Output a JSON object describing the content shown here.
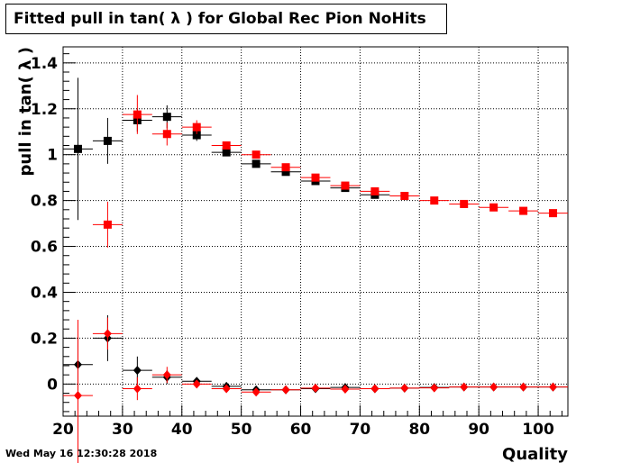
{
  "title": "Fitted pull in tan( λ ) for Global Rec Pion NoHits",
  "timestamp": "Wed May 16 12:30:28 2018",
  "chart_data": {
    "type": "scatter",
    "title": "Fitted pull in tan( λ ) for Global Rec Pion NoHits",
    "xlabel": "Quality",
    "ylabel": "pull in tan( λ )",
    "xlim": [
      20,
      105
    ],
    "ylim": [
      -0.14,
      1.47
    ],
    "xticks": [
      "20",
      "30",
      "40",
      "50",
      "60",
      "70",
      "80",
      "90",
      "100"
    ],
    "yticks": [
      "0",
      "0.2",
      "0.4",
      "0.6",
      "0.8",
      "1",
      "1.2",
      "1.4"
    ],
    "grid": true,
    "series": [
      {
        "marker": "square",
        "color": "#000000",
        "points": [
          {
            "x": 22.5,
            "y": 1.025,
            "xerr": 2.5,
            "yerr": 0.31
          },
          {
            "x": 27.5,
            "y": 1.06,
            "xerr": 2.5,
            "yerr": 0.1
          },
          {
            "x": 32.5,
            "y": 1.15,
            "xerr": 2.5,
            "yerr": 0.05
          },
          {
            "x": 37.5,
            "y": 1.165,
            "xerr": 2.5,
            "yerr": 0.05
          },
          {
            "x": 42.5,
            "y": 1.085,
            "xerr": 2.5,
            "yerr": 0.025
          },
          {
            "x": 47.5,
            "y": 1.01,
            "xerr": 2.5,
            "yerr": 0.015
          },
          {
            "x": 52.5,
            "y": 0.96,
            "xerr": 2.5,
            "yerr": 0.01
          },
          {
            "x": 57.5,
            "y": 0.925,
            "xerr": 2.5,
            "yerr": 0.01
          },
          {
            "x": 62.5,
            "y": 0.885,
            "xerr": 2.5,
            "yerr": 0.01
          },
          {
            "x": 67.5,
            "y": 0.855,
            "xerr": 2.5,
            "yerr": 0.008
          },
          {
            "x": 72.5,
            "y": 0.825,
            "xerr": 2.5,
            "yerr": 0.006
          }
        ]
      },
      {
        "marker": "square",
        "color": "#ff0000",
        "points": [
          {
            "x": 27.5,
            "y": 0.695,
            "xerr": 2.5,
            "yerr": 0.1
          },
          {
            "x": 32.5,
            "y": 1.175,
            "xerr": 2.5,
            "yerr": 0.085
          },
          {
            "x": 37.5,
            "y": 1.09,
            "xerr": 2.5,
            "yerr": 0.05
          },
          {
            "x": 42.5,
            "y": 1.12,
            "xerr": 2.5,
            "yerr": 0.03
          },
          {
            "x": 47.5,
            "y": 1.04,
            "xerr": 2.5,
            "yerr": 0.015
          },
          {
            "x": 52.5,
            "y": 1.0,
            "xerr": 2.5,
            "yerr": 0.01
          },
          {
            "x": 57.5,
            "y": 0.945,
            "xerr": 2.5,
            "yerr": 0.01
          },
          {
            "x": 62.5,
            "y": 0.9,
            "xerr": 2.5,
            "yerr": 0.01
          },
          {
            "x": 67.5,
            "y": 0.865,
            "xerr": 2.5,
            "yerr": 0.008
          },
          {
            "x": 72.5,
            "y": 0.84,
            "xerr": 2.5,
            "yerr": 0.006
          },
          {
            "x": 77.5,
            "y": 0.82,
            "xerr": 2.5,
            "yerr": 0.005
          },
          {
            "x": 82.5,
            "y": 0.8,
            "xerr": 2.5,
            "yerr": 0.005
          },
          {
            "x": 87.5,
            "y": 0.785,
            "xerr": 2.5,
            "yerr": 0.004
          },
          {
            "x": 92.5,
            "y": 0.77,
            "xerr": 2.5,
            "yerr": 0.004
          },
          {
            "x": 97.5,
            "y": 0.755,
            "xerr": 2.5,
            "yerr": 0.004
          },
          {
            "x": 102.5,
            "y": 0.745,
            "xerr": 2.5,
            "yerr": 0.004
          }
        ]
      },
      {
        "marker": "diamond",
        "color": "#000000",
        "points": [
          {
            "x": 22.5,
            "y": 0.085,
            "xerr": 2.5,
            "yerr": 0.12
          },
          {
            "x": 27.5,
            "y": 0.2,
            "xerr": 2.5,
            "yerr": 0.1
          },
          {
            "x": 32.5,
            "y": 0.06,
            "xerr": 2.5,
            "yerr": 0.06
          },
          {
            "x": 37.5,
            "y": 0.03,
            "xerr": 2.5,
            "yerr": 0.03
          },
          {
            "x": 42.5,
            "y": 0.012,
            "xerr": 2.5,
            "yerr": 0.015
          },
          {
            "x": 47.5,
            "y": -0.01,
            "xerr": 2.5,
            "yerr": 0.01
          },
          {
            "x": 52.5,
            "y": -0.025,
            "xerr": 2.5,
            "yerr": 0.008
          },
          {
            "x": 57.5,
            "y": -0.025,
            "xerr": 2.5,
            "yerr": 0.006
          },
          {
            "x": 62.5,
            "y": -0.02,
            "xerr": 2.5,
            "yerr": 0.005
          },
          {
            "x": 67.5,
            "y": -0.015,
            "xerr": 2.5,
            "yerr": 0.005
          },
          {
            "x": 72.5,
            "y": -0.02,
            "xerr": 2.5,
            "yerr": 0.004
          },
          {
            "x": 77.5,
            "y": -0.018,
            "xerr": 2.5,
            "yerr": 0.004
          },
          {
            "x": 82.5,
            "y": -0.015,
            "xerr": 2.5,
            "yerr": 0.004
          },
          {
            "x": 87.5,
            "y": -0.013,
            "xerr": 2.5,
            "yerr": 0.004
          },
          {
            "x": 92.5,
            "y": -0.013,
            "xerr": 2.5,
            "yerr": 0.004
          },
          {
            "x": 97.5,
            "y": -0.013,
            "xerr": 2.5,
            "yerr": 0.004
          },
          {
            "x": 102.5,
            "y": -0.013,
            "xerr": 2.5,
            "yerr": 0.004
          }
        ]
      },
      {
        "marker": "diamond",
        "color": "#ff0000",
        "points": [
          {
            "x": 22.5,
            "y": -0.05,
            "xerr": 2.5,
            "yerr": 0.33
          },
          {
            "x": 27.5,
            "y": 0.22,
            "xerr": 2.5,
            "yerr": 0.07
          },
          {
            "x": 32.5,
            "y": -0.02,
            "xerr": 2.5,
            "yerr": 0.05
          },
          {
            "x": 37.5,
            "y": 0.04,
            "xerr": 2.5,
            "yerr": 0.035
          },
          {
            "x": 42.5,
            "y": 0.0,
            "xerr": 2.5,
            "yerr": 0.015
          },
          {
            "x": 47.5,
            "y": -0.02,
            "xerr": 2.5,
            "yerr": 0.01
          },
          {
            "x": 52.5,
            "y": -0.035,
            "xerr": 2.5,
            "yerr": 0.008
          },
          {
            "x": 57.5,
            "y": -0.025,
            "xerr": 2.5,
            "yerr": 0.006
          },
          {
            "x": 62.5,
            "y": -0.018,
            "xerr": 2.5,
            "yerr": 0.005
          },
          {
            "x": 67.5,
            "y": -0.022,
            "xerr": 2.5,
            "yerr": 0.005
          },
          {
            "x": 72.5,
            "y": -0.02,
            "xerr": 2.5,
            "yerr": 0.004
          },
          {
            "x": 77.5,
            "y": -0.018,
            "xerr": 2.5,
            "yerr": 0.004
          },
          {
            "x": 82.5,
            "y": -0.017,
            "xerr": 2.5,
            "yerr": 0.004
          },
          {
            "x": 87.5,
            "y": -0.013,
            "xerr": 2.5,
            "yerr": 0.004
          },
          {
            "x": 92.5,
            "y": -0.013,
            "xerr": 2.5,
            "yerr": 0.004
          },
          {
            "x": 97.5,
            "y": -0.013,
            "xerr": 2.5,
            "yerr": 0.004
          },
          {
            "x": 102.5,
            "y": -0.013,
            "xerr": 2.5,
            "yerr": 0.004
          }
        ]
      }
    ]
  }
}
